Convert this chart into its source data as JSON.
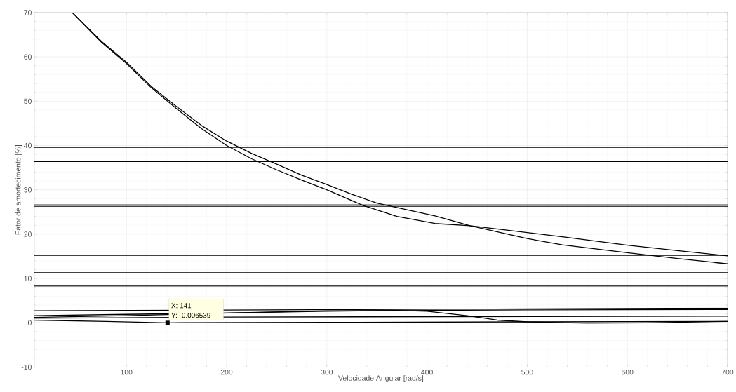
{
  "chart_data": {
    "type": "line",
    "xlabel": "Velocidade Angular [rad/s]",
    "ylabel": "Fator de amortecimento [%]",
    "xlim": [
      8,
      700
    ],
    "ylim": [
      -10,
      70
    ],
    "xticks": [
      100,
      200,
      300,
      400,
      500,
      600,
      700
    ],
    "yticks": [
      -10,
      0,
      10,
      20,
      30,
      40,
      50,
      60,
      70
    ],
    "grid": true,
    "annotations": [
      {
        "text": "X: 141",
        "x": 141,
        "y": -0.006539
      },
      {
        "text": "Y: -0.006539",
        "x": 141,
        "y": -0.006539
      }
    ],
    "series": [
      {
        "color": "#000000",
        "x": [
          46,
          75,
          100,
          125,
          150,
          175,
          200,
          225,
          250,
          275,
          300,
          325,
          350,
          380,
          408,
          443,
          500,
          535,
          600,
          650,
          700
        ],
        "values": [
          70,
          63.5,
          58.8,
          53.3,
          48.8,
          44.5,
          41,
          38.2,
          35.8,
          33.3,
          31.2,
          29,
          27,
          25.5,
          24.1,
          21.9,
          19,
          17.6,
          15.8,
          14.5,
          13.3
        ]
      },
      {
        "color": "#000000",
        "x": [
          46,
          75,
          100,
          125,
          150,
          175,
          200,
          225,
          250,
          275,
          300,
          336,
          370,
          408,
          443,
          535,
          600,
          650,
          700
        ],
        "values": [
          70,
          63.3,
          58.5,
          53,
          48.3,
          43.8,
          40,
          37,
          34.5,
          32.2,
          30,
          26.5,
          24,
          22.4,
          21.9,
          19.4,
          17.5,
          16.3,
          15.1
        ]
      },
      {
        "color": "#000000",
        "x": [
          8,
          700
        ],
        "values": [
          39.6,
          39.6
        ]
      },
      {
        "color": "#000000",
        "x": [
          8,
          700
        ],
        "values": [
          36.4,
          36.4
        ]
      },
      {
        "color": "#000000",
        "x": [
          8,
          700
        ],
        "values": [
          26.3,
          26.3
        ]
      },
      {
        "color": "#000000",
        "x": [
          8,
          700
        ],
        "values": [
          26.6,
          26.6
        ]
      },
      {
        "color": "#000000",
        "x": [
          8,
          700
        ],
        "values": [
          15.2,
          15.2
        ]
      },
      {
        "color": "#000000",
        "x": [
          8,
          700
        ],
        "values": [
          11.3,
          11.3
        ]
      },
      {
        "color": "#000000",
        "x": [
          8,
          700
        ],
        "values": [
          8.3,
          8.3
        ]
      },
      {
        "color": "#000000",
        "x": [
          8,
          700
        ],
        "values": [
          2.7,
          3.3
        ]
      },
      {
        "color": "#000000",
        "x": [
          8,
          100,
          200,
          300,
          400,
          500,
          700
        ],
        "values": [
          1.6,
          1.9,
          2.2,
          2.6,
          2.8,
          2.9,
          3.0
        ]
      },
      {
        "color": "#000000",
        "x": [
          8,
          100,
          200,
          300,
          370,
          400,
          440,
          470,
          500,
          560,
          620,
          700
        ],
        "values": [
          1.2,
          1.6,
          2.2,
          2.7,
          2.8,
          2.6,
          1.6,
          0.6,
          0.2,
          -0.1,
          0,
          0.3
        ]
      },
      {
        "color": "#000000",
        "x": [
          8,
          200,
          700
        ],
        "values": [
          1.0,
          1.3,
          1.5
        ]
      },
      {
        "color": "#000000",
        "x": [
          8,
          80,
          141,
          300,
          500,
          700
        ],
        "values": [
          0.6,
          0.3,
          0,
          0.1,
          0.2,
          0.3
        ]
      }
    ]
  }
}
